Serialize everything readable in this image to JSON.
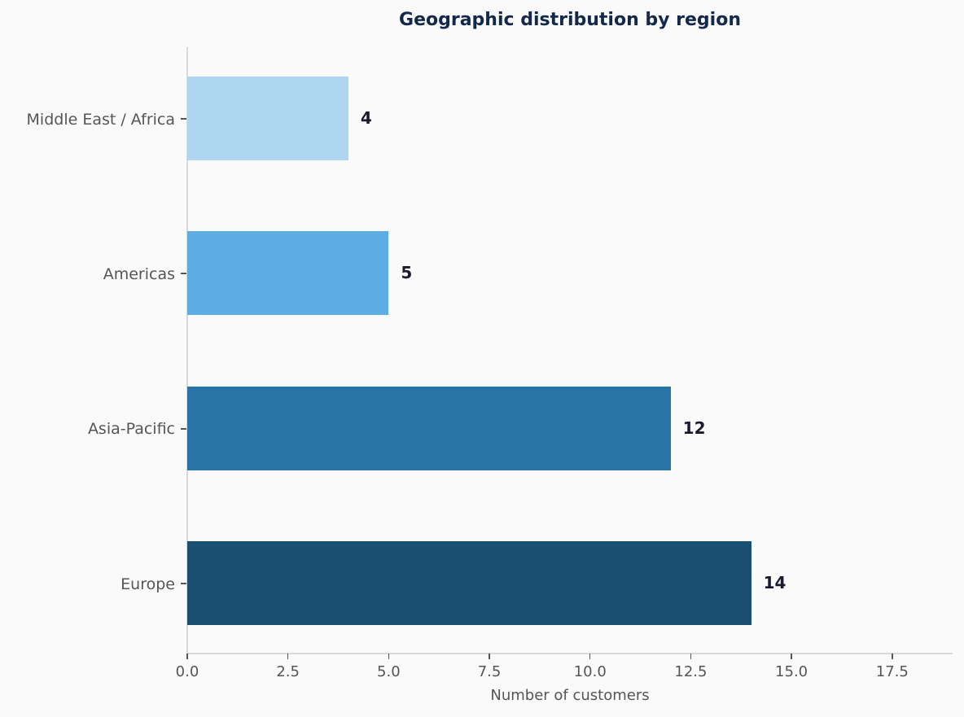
{
  "chart_data": {
    "type": "bar",
    "orientation": "horizontal",
    "title": "Geographic distribution by region",
    "xlabel": "Number of customers",
    "ylabel": "",
    "categories": [
      "Europe",
      "Asia-Pacific",
      "Americas",
      "Middle East / Africa"
    ],
    "values": [
      14,
      12,
      5,
      4
    ],
    "colors": [
      "#1B4F72",
      "#2874A6",
      "#5DADE2",
      "#AED6F1"
    ],
    "value_labels": [
      "14",
      "12",
      "5",
      "4"
    ],
    "xlim": [
      0,
      19
    ],
    "xticks": [
      "0.0",
      "2.5",
      "5.0",
      "7.5",
      "10.0",
      "12.5",
      "15.0",
      "17.5"
    ],
    "grid": false,
    "legend": null
  },
  "bars": [
    {
      "label": "Europe",
      "value": 14,
      "value_label": "14",
      "color": "#1B4F72"
    },
    {
      "label": "Asia-Pacific",
      "value": 12,
      "value_label": "12",
      "color": "#2874A6"
    },
    {
      "label": "Americas",
      "value": 5,
      "value_label": "5",
      "color": "#5DADE2"
    },
    {
      "label": "Middle East / Africa",
      "value": 4,
      "value_label": "4",
      "color": "#AED6F1"
    }
  ],
  "xticks": [
    {
      "value": 0,
      "label": "0.0"
    },
    {
      "value": 2.5,
      "label": "2.5"
    },
    {
      "value": 5,
      "label": "5.0"
    },
    {
      "value": 7.5,
      "label": "7.5"
    },
    {
      "value": 10,
      "label": "10.0"
    },
    {
      "value": 12.5,
      "label": "12.5"
    },
    {
      "value": 15,
      "label": "15.0"
    },
    {
      "value": 17.5,
      "label": "17.5"
    }
  ],
  "title": "Geographic distribution by region",
  "xlabel": "Number of customers"
}
